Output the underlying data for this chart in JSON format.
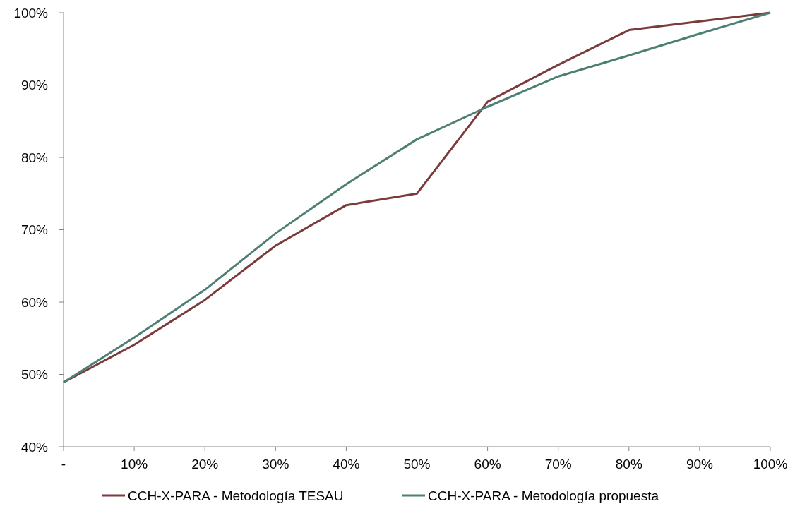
{
  "chart_data": {
    "type": "line",
    "categories": [
      "-",
      "10%",
      "20%",
      "30%",
      "40%",
      "50%",
      "60%",
      "70%",
      "80%",
      "90%",
      "100%"
    ],
    "series": [
      {
        "name": "CCH-X-PARA - Metodología TESAU",
        "color": "#7b3b3b",
        "values": [
          48.9,
          54.1,
          60.3,
          67.8,
          73.4,
          75.0,
          87.7,
          92.8,
          97.6,
          98.8,
          100
        ]
      },
      {
        "name": "CCH-X-PARA - Metodología propuesta",
        "color": "#4e7f74",
        "values": [
          48.9,
          55.1,
          61.7,
          69.5,
          76.3,
          82.5,
          87.0,
          91.2,
          94.1,
          97.1,
          100
        ]
      }
    ],
    "ylim": [
      40,
      100
    ],
    "yticks": [
      {
        "value": 40,
        "label": "40%"
      },
      {
        "value": 50,
        "label": "50%"
      },
      {
        "value": 60,
        "label": "60%"
      },
      {
        "value": 70,
        "label": "70%"
      },
      {
        "value": 80,
        "label": "80%"
      },
      {
        "value": 90,
        "label": "90%"
      },
      {
        "value": 100,
        "label": "100%"
      }
    ],
    "grid": false,
    "legend": "bottom",
    "marker": "none",
    "line_style": "solid"
  }
}
